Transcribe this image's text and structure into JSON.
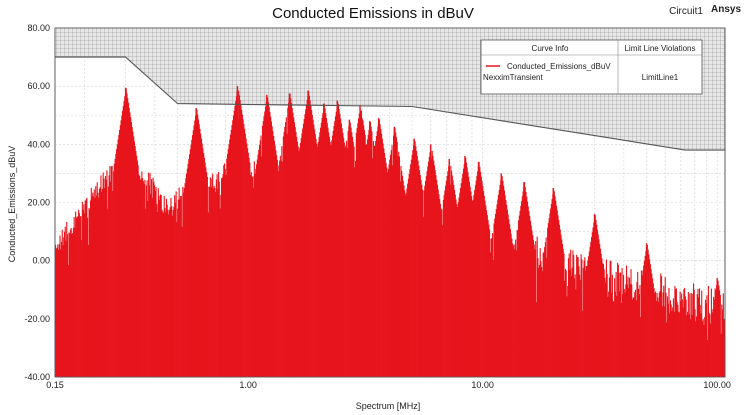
{
  "chart_data": {
    "type": "area",
    "title": "Conducted Emissions in dBuV",
    "xlabel": "Spectrum [MHz]",
    "ylabel": "Conducted_Emissions_dBuV",
    "x_scale": "log",
    "xlim": [
      0.15,
      108
    ],
    "ylim": [
      -40,
      80
    ],
    "x_ticks": [
      "0.15",
      "1.00",
      "10.00",
      "100.00"
    ],
    "y_ticks": [
      "80.00",
      "60.00",
      "40.00",
      "20.00",
      "0.00",
      "-20.00",
      "-40.00"
    ],
    "grid": true,
    "series": [
      {
        "name": "Conducted_Emissions_dBuV",
        "source": "NexximTransient",
        "color": "#e8141c",
        "peaks": [
          {
            "x": 0.3,
            "y": 59.5
          },
          {
            "x": 0.6,
            "y": 52.5
          },
          {
            "x": 0.9,
            "y": 60.0
          },
          {
            "x": 1.2,
            "y": 57.0
          },
          {
            "x": 1.5,
            "y": 57.5
          },
          {
            "x": 1.8,
            "y": 58.5
          },
          {
            "x": 2.1,
            "y": 54.0
          },
          {
            "x": 2.4,
            "y": 55.0
          },
          {
            "x": 2.7,
            "y": 48.5
          },
          {
            "x": 3.0,
            "y": 53.5
          },
          {
            "x": 3.3,
            "y": 48.0
          },
          {
            "x": 3.6,
            "y": 49.0
          },
          {
            "x": 4.2,
            "y": 46.0
          },
          {
            "x": 5.1,
            "y": 42.0
          },
          {
            "x": 6.0,
            "y": 40.0
          },
          {
            "x": 7.2,
            "y": 35.0
          },
          {
            "x": 8.4,
            "y": 36.0
          },
          {
            "x": 9.6,
            "y": 34.0
          },
          {
            "x": 12.0,
            "y": 30.0
          },
          {
            "x": 15.0,
            "y": 27.0
          },
          {
            "x": 20.0,
            "y": 25.0
          },
          {
            "x": 30.0,
            "y": 16.0
          },
          {
            "x": 50.0,
            "y": 6.0
          },
          {
            "x": 100.0,
            "y": -6.0
          }
        ],
        "floor_profile": [
          {
            "x": 0.15,
            "y": -25
          },
          {
            "x": 0.3,
            "y": -5
          },
          {
            "x": 0.45,
            "y": -12
          },
          {
            "x": 0.6,
            "y": -5
          },
          {
            "x": 0.7,
            "y": -20
          },
          {
            "x": 1.0,
            "y": -8
          },
          {
            "x": 2.0,
            "y": -3
          },
          {
            "x": 3.0,
            "y": -8
          },
          {
            "x": 5.0,
            "y": -12
          },
          {
            "x": 8.0,
            "y": -2
          },
          {
            "x": 15.0,
            "y": 0
          },
          {
            "x": 30.0,
            "y": -8
          },
          {
            "x": 108.0,
            "y": -20
          }
        ]
      },
      {
        "name": "LimitLine1",
        "color": "#555555",
        "points": [
          {
            "x": 0.15,
            "y": 70
          },
          {
            "x": 0.3,
            "y": 70
          },
          {
            "x": 0.5,
            "y": 54
          },
          {
            "x": 5.0,
            "y": 53
          },
          {
            "x": 30.0,
            "y": 43
          },
          {
            "x": 73.0,
            "y": 38
          },
          {
            "x": 108.0,
            "y": 38
          }
        ]
      }
    ],
    "legend": {
      "placement": "top-right",
      "headers": [
        "Curve Info",
        "Limit Line Violations"
      ],
      "rows": [
        {
          "curve": "Conducted_Emissions_dBuV",
          "source": "NexximTransient",
          "violation": "LimitLine1"
        }
      ]
    },
    "corner_labels": [
      "Circuit1",
      "Ansys"
    ]
  }
}
